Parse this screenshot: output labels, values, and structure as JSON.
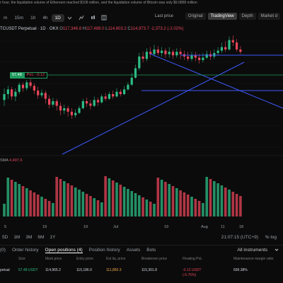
{
  "ticker": "r hour, the liquidation volume of Ethereum reached $106 million, and the liquidation volume of Bitcoin was only $9.0858 million",
  "toolbar": {
    "timeframes": [
      "m",
      "15m",
      "1h",
      "4h",
      "1D"
    ],
    "active": "1D",
    "last_price_label": "Last price",
    "views": [
      "Original",
      "TradingView",
      "Depth",
      "Market d"
    ],
    "active_view": "TradingView"
  },
  "title": {
    "symbol": "TCUSDT Perpetual · 1D · OKX",
    "o_label": "O",
    "o": "117,346.8",
    "h_label": "H",
    "h": "117,488.0",
    "l_label": "L",
    "l": "114,603.2",
    "c_label": "C",
    "c": "114,973.7",
    "change": "-2,373.2 (-2.02%)"
  },
  "position_tag": {
    "price": "57.48",
    "pnl": "PnL: -0.12"
  },
  "volume": {
    "label": "SMA",
    "value": "4,497.6"
  },
  "xaxis": [
    "5",
    "19",
    "Jul",
    "19",
    "Aug",
    "11",
    "18"
  ],
  "range": {
    "items": [
      "5D",
      "1M",
      "3M",
      "6M",
      "1Y"
    ],
    "clock": "21:07:15 (UTC+9)",
    "zoom": "%  log"
  },
  "tabs": {
    "items": [
      "(0)",
      "Order history",
      "Open positions (4)",
      "Position history",
      "Assets",
      "Bots"
    ],
    "active": "Open positions (4)",
    "instrument": "All instruments"
  },
  "table": {
    "headers": [
      "Size",
      "Mark price",
      "Entry price",
      "Est liq. price",
      "Breakeven price",
      "Floating PnL",
      "Maintenance margin ratio"
    ],
    "row": {
      "symbol": "petual",
      "size": "57.48 USDT",
      "mark": "114,965.2",
      "entry": "115,186.0",
      "liq": "111,850.3",
      "breakeven": "115,301.8",
      "pnl": "-0.12 USDT",
      "pnl_pct": "(-5.75%)",
      "margin": "699.38%"
    }
  },
  "colors": {
    "up": "#2ebd85",
    "down": "#e8465a",
    "line": "#3d5afe",
    "bg": "#0b0b0b"
  },
  "chart_data": {
    "type": "candlestick",
    "values": [
      [
        45,
        50,
        40,
        55
      ],
      [
        50,
        54,
        46,
        57
      ],
      [
        54,
        48,
        45,
        56
      ],
      [
        48,
        52,
        44,
        55
      ],
      [
        52,
        58,
        50,
        60
      ],
      [
        58,
        55,
        52,
        60
      ],
      [
        55,
        60,
        53,
        62
      ],
      [
        60,
        57,
        55,
        63
      ],
      [
        57,
        53,
        50,
        59
      ],
      [
        53,
        49,
        46,
        56
      ],
      [
        49,
        51,
        47,
        54
      ],
      [
        51,
        46,
        42,
        53
      ],
      [
        46,
        41,
        38,
        49
      ],
      [
        41,
        44,
        39,
        47
      ],
      [
        44,
        40,
        36,
        46
      ],
      [
        40,
        36,
        32,
        43
      ],
      [
        36,
        38,
        33,
        41
      ],
      [
        38,
        35,
        31,
        40
      ],
      [
        35,
        32,
        29,
        38
      ],
      [
        32,
        34,
        30,
        37
      ],
      [
        34,
        38,
        33,
        40
      ],
      [
        38,
        44,
        37,
        46
      ],
      [
        44,
        42,
        39,
        47
      ],
      [
        42,
        40,
        37,
        45
      ],
      [
        40,
        45,
        39,
        48
      ],
      [
        45,
        43,
        40,
        47
      ],
      [
        43,
        48,
        42,
        50
      ],
      [
        48,
        46,
        44,
        51
      ],
      [
        46,
        50,
        45,
        52
      ],
      [
        50,
        48,
        46,
        53
      ],
      [
        48,
        52,
        47,
        55
      ],
      [
        52,
        50,
        48,
        54
      ],
      [
        50,
        54,
        49,
        57
      ],
      [
        54,
        58,
        53,
        60
      ],
      [
        58,
        64,
        57,
        68
      ],
      [
        64,
        72,
        63,
        75
      ],
      [
        72,
        82,
        70,
        85
      ],
      [
        82,
        80,
        77,
        86
      ],
      [
        80,
        86,
        78,
        89
      ],
      [
        86,
        84,
        81,
        90
      ],
      [
        84,
        88,
        82,
        92
      ],
      [
        88,
        85,
        83,
        91
      ],
      [
        85,
        87,
        82,
        90
      ],
      [
        87,
        84,
        81,
        89
      ],
      [
        84,
        86,
        81,
        90
      ],
      [
        86,
        83,
        80,
        88
      ],
      [
        83,
        86,
        81,
        89
      ],
      [
        86,
        84,
        80,
        89
      ],
      [
        84,
        82,
        79,
        87
      ],
      [
        82,
        80,
        78,
        86
      ],
      [
        80,
        83,
        78,
        86
      ],
      [
        83,
        81,
        78,
        86
      ],
      [
        81,
        79,
        76,
        84
      ],
      [
        79,
        81,
        77,
        85
      ],
      [
        81,
        84,
        80,
        87
      ],
      [
        84,
        82,
        79,
        87
      ],
      [
        82,
        85,
        80,
        88
      ],
      [
        85,
        87,
        83,
        90
      ],
      [
        87,
        90,
        85,
        94
      ],
      [
        90,
        88,
        86,
        95
      ],
      [
        88,
        96,
        87,
        99
      ],
      [
        96,
        94,
        91,
        100
      ],
      [
        94,
        88,
        86,
        97
      ],
      [
        88,
        86,
        84,
        91
      ]
    ]
  }
}
